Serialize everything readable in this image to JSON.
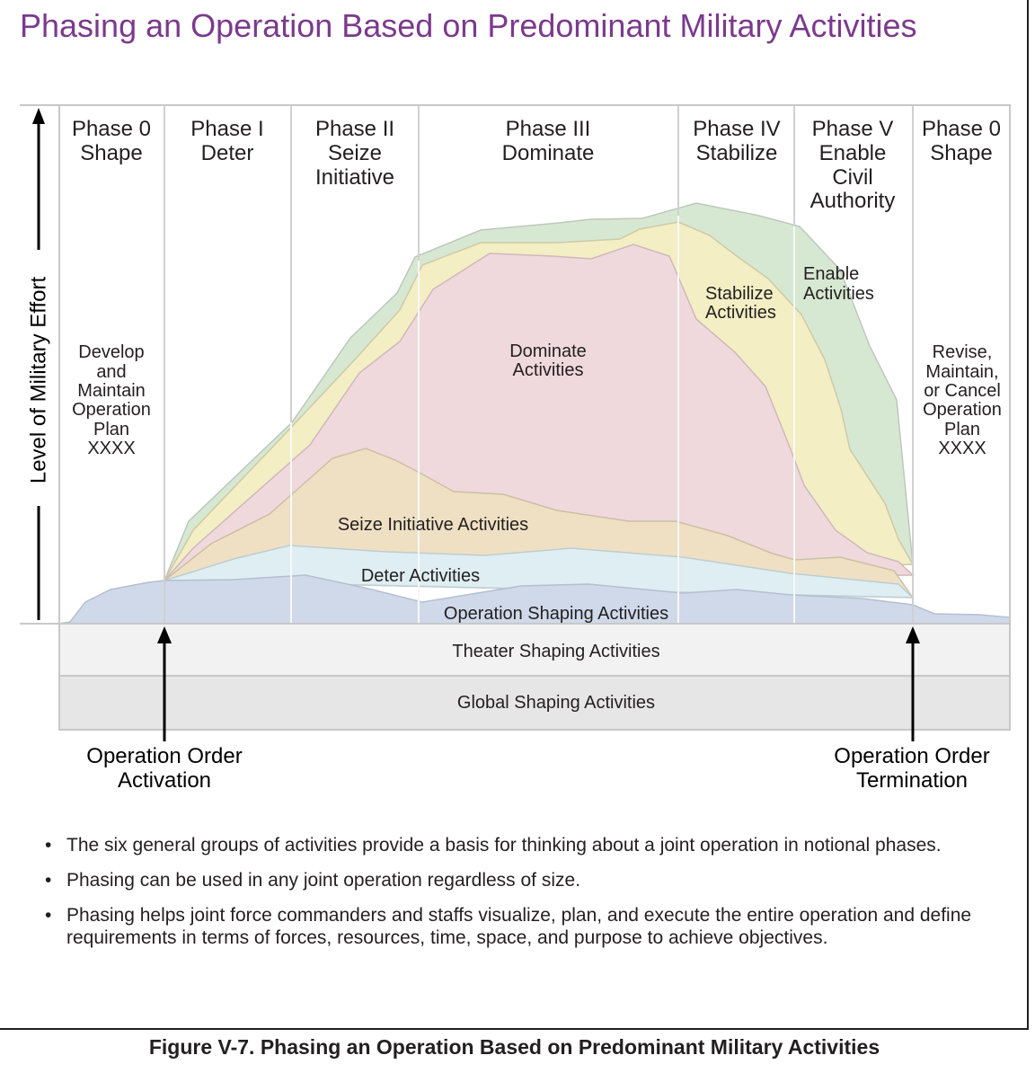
{
  "title": "Phasing an Operation Based on Predominant Military Activities",
  "y_axis_label": "Level of Military Effort",
  "phases": [
    {
      "lines": [
        "Phase 0",
        "Shape"
      ]
    },
    {
      "lines": [
        "Phase I",
        "Deter"
      ]
    },
    {
      "lines": [
        "Phase II",
        "Seize",
        "Initiative"
      ]
    },
    {
      "lines": [
        "Phase III",
        "Dominate"
      ]
    },
    {
      "lines": [
        "Phase IV",
        "Stabilize"
      ]
    },
    {
      "lines": [
        "Phase V",
        "Enable",
        "Civil",
        "Authority"
      ]
    },
    {
      "lines": [
        "Phase 0",
        "Shape"
      ]
    }
  ],
  "side_notes": {
    "left": [
      "Develop",
      "and",
      "Maintain",
      "Operation",
      "Plan",
      "XXXX"
    ],
    "right": [
      "Revise,",
      "Maintain,",
      "or Cancel",
      "Operation",
      "Plan",
      "XXXX"
    ]
  },
  "activity_labels": {
    "enable": [
      "Enable",
      "Activities"
    ],
    "stabilize": [
      "Stabilize",
      "Activities"
    ],
    "dominate": [
      "Dominate",
      "Activities"
    ],
    "seize": "Seize Initiative Activities",
    "deter": "Deter Activities",
    "operation_shaping": "Operation Shaping Activities"
  },
  "bands": {
    "theater": "Theater Shaping Activities",
    "global": "Global Shaping Activities"
  },
  "markers": {
    "activation": [
      "Operation Order",
      "Activation"
    ],
    "termination": [
      "Operation Order",
      "Termination"
    ]
  },
  "colors": {
    "title": "#7b3a8c",
    "enable": "#d7e8d2",
    "stabilize": "#f3eec3",
    "dominate": "#efd9dc",
    "seize": "#efe0c4",
    "deter": "#deeef2",
    "operation_shaping": "#cfd9ea",
    "theater_band": "#f2f2f2",
    "global_band": "#e6e6e6"
  },
  "bullets": [
    "The six general groups of activities provide a basis for thinking about a joint operation in notional phases.",
    "Phasing can be used in any joint operation regardless of size.",
    "Phasing helps joint force commanders and staffs visualize, plan, and execute the entire operation and define requirements in terms of forces, resources, time, space, and purpose to achieve objectives."
  ],
  "caption": "Figure V-7.  Phasing an Operation Based on Predominant Military Activities"
}
